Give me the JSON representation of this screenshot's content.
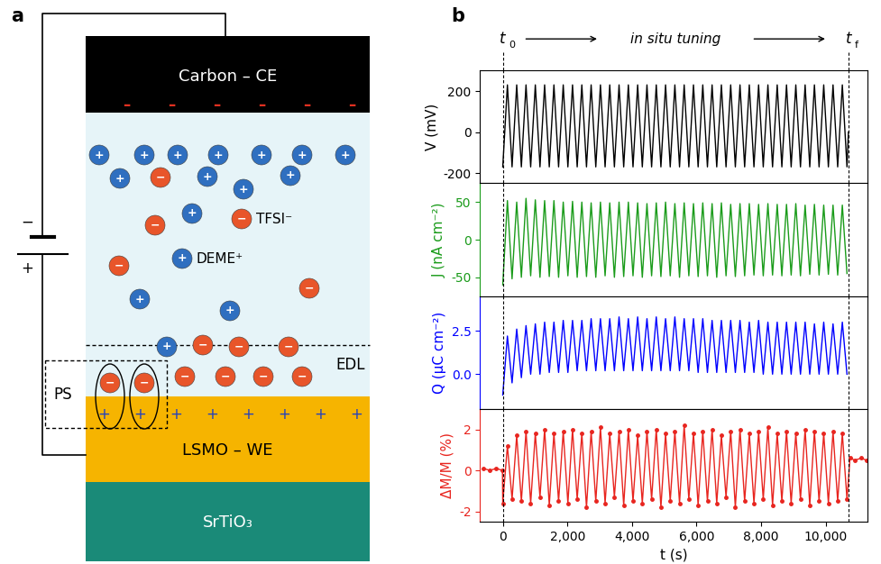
{
  "diagram": {
    "panel_label": "a",
    "counter_electrode": "Carbon – CE",
    "working_electrode": "LSMO – WE",
    "substrate": "SrTiO₃",
    "anion_label": "TFSI⁻",
    "cation_label": "DEME⁺",
    "edl_label": "EDL",
    "ps_label": "PS",
    "ion_signs": {
      "cation": "+",
      "anion": "−"
    },
    "electrode_charges": {
      "counter_electrode": "–",
      "working_electrode": "+"
    },
    "battery": {
      "negative": "−",
      "positive": "+"
    }
  },
  "chart_panel_label": "b",
  "in_situ_tuning": {
    "text": "in situ tuning",
    "start": {
      "text": "t",
      "subscript": "0",
      "x": 0
    },
    "end": {
      "text": "t",
      "subscript": "f",
      "x": 10700
    }
  },
  "chart_data": [
    {
      "type": "line",
      "ylabel": "V (mV)",
      "xlim": [
        -700,
        11300
      ],
      "xticks": [
        0,
        {
          "value": 2000,
          "label": "2,000"
        },
        {
          "value": 4000,
          "label": "4,000"
        },
        {
          "value": 6000,
          "label": "6,000"
        },
        {
          "value": 8000,
          "label": "8,000"
        },
        {
          "value": 10000,
          "label": "10,000"
        }
      ],
      "ylim": [
        -250,
        300
      ],
      "yticks": [
        -200,
        0,
        200
      ],
      "tick_labels": "y",
      "series": [
        {
          "color": "#000000",
          "line_style": "solid",
          "x": [
            0,
            144,
            288,
            432,
            576,
            720,
            864,
            1008,
            1152,
            1296,
            1440,
            1584,
            1728,
            1872,
            2016,
            2160,
            2304,
            2448,
            2592,
            2736,
            2880,
            3024,
            3168,
            3312,
            3456,
            3600,
            3744,
            3888,
            4032,
            4176,
            4320,
            4464,
            4608,
            4752,
            4896,
            5040,
            5184,
            5328,
            5472,
            5616,
            5760,
            5904,
            6048,
            6192,
            6336,
            6480,
            6624,
            6768,
            6912,
            7056,
            7200,
            7344,
            7488,
            7632,
            7776,
            7920,
            8064,
            8208,
            8352,
            8496,
            8640,
            8784,
            8928,
            9072,
            9216,
            9360,
            9504,
            9648,
            9792,
            9936,
            10080,
            10224,
            10368,
            10512,
            10656,
            10700
          ],
          "values": [
            -170,
            230,
            -170,
            230,
            -170,
            230,
            -170,
            230,
            -170,
            230,
            -170,
            230,
            -170,
            230,
            -170,
            230,
            -170,
            230,
            -170,
            230,
            -170,
            230,
            -170,
            230,
            -170,
            230,
            -170,
            230,
            -170,
            230,
            -170,
            230,
            -170,
            230,
            -170,
            230,
            -170,
            230,
            -170,
            230,
            -170,
            230,
            -170,
            230,
            -170,
            230,
            -170,
            230,
            -170,
            230,
            -170,
            230,
            -170,
            230,
            -170,
            230,
            -170,
            230,
            -170,
            230,
            -170,
            230,
            -170,
            230,
            -170,
            230,
            -170,
            230,
            -170,
            230,
            -170,
            230,
            -170,
            230,
            -170,
            0
          ]
        }
      ]
    },
    {
      "type": "line",
      "ylabel": "J (nA cm⁻²)",
      "xlim": [
        -700,
        11300
      ],
      "xticks": [
        0,
        {
          "value": 2000,
          "label": "2,000"
        },
        {
          "value": 4000,
          "label": "4,000"
        },
        {
          "value": 6000,
          "label": "6,000"
        },
        {
          "value": 8000,
          "label": "8,000"
        },
        {
          "value": 10000,
          "label": "10,000"
        }
      ],
      "ylim": [
        -75,
        75
      ],
      "yticks": [
        -50,
        0,
        50
      ],
      "tick_labels": "y",
      "series": [
        {
          "color": "#1a9b1a",
          "line_style": "solid",
          "x": [
            0,
            144,
            288,
            432,
            576,
            720,
            864,
            1008,
            1152,
            1296,
            1440,
            1584,
            1728,
            1872,
            2016,
            2160,
            2304,
            2448,
            2592,
            2736,
            2880,
            3024,
            3168,
            3312,
            3456,
            3600,
            3744,
            3888,
            4032,
            4176,
            4320,
            4464,
            4608,
            4752,
            4896,
            5040,
            5184,
            5328,
            5472,
            5616,
            5760,
            5904,
            6048,
            6192,
            6336,
            6480,
            6624,
            6768,
            6912,
            7056,
            7200,
            7344,
            7488,
            7632,
            7776,
            7920,
            8064,
            8208,
            8352,
            8496,
            8640,
            8784,
            8928,
            9072,
            9216,
            9360,
            9504,
            9648,
            9792,
            9936,
            10080,
            10224,
            10368,
            10512,
            10656
          ],
          "values": [
            -60,
            52,
            -52,
            50,
            -50,
            55,
            -48,
            53,
            -50,
            52,
            -49,
            52,
            -50,
            50,
            -48,
            51,
            -50,
            50,
            -49,
            49,
            -50,
            50,
            -48,
            49,
            -50,
            50,
            -49,
            50,
            -48,
            49,
            -50,
            48,
            -48,
            49,
            -49,
            50,
            -48,
            48,
            -50,
            49,
            -48,
            48,
            -49,
            49,
            -48,
            48,
            -50,
            49,
            -48,
            47,
            -49,
            48,
            -48,
            48,
            -47,
            47,
            -48,
            48,
            -47,
            47,
            -48,
            47,
            -47,
            48,
            -48,
            46,
            -46,
            47,
            -47,
            46,
            -46,
            46,
            -47,
            46,
            -45
          ]
        }
      ]
    },
    {
      "type": "line",
      "ylabel": "Q (μC cm⁻²)",
      "xlim": [
        -700,
        11300
      ],
      "xticks": [
        0,
        {
          "value": 2000,
          "label": "2,000"
        },
        {
          "value": 4000,
          "label": "4,000"
        },
        {
          "value": 6000,
          "label": "6,000"
        },
        {
          "value": 8000,
          "label": "8,000"
        },
        {
          "value": 10000,
          "label": "10,000"
        }
      ],
      "ylim": [
        -2,
        4.5
      ],
      "yticks": [
        {
          "value": 0,
          "label": "0.0"
        },
        2.5
      ],
      "tick_labels": "y",
      "series": [
        {
          "color": "#0000ff",
          "line_style": "solid",
          "x": [
            0,
            144,
            288,
            432,
            576,
            720,
            864,
            1008,
            1152,
            1296,
            1440,
            1584,
            1728,
            1872,
            2016,
            2160,
            2304,
            2448,
            2592,
            2736,
            2880,
            3024,
            3168,
            3312,
            3456,
            3600,
            3744,
            3888,
            4032,
            4176,
            4320,
            4464,
            4608,
            4752,
            4896,
            5040,
            5184,
            5328,
            5472,
            5616,
            5760,
            5904,
            6048,
            6192,
            6336,
            6480,
            6624,
            6768,
            6912,
            7056,
            7200,
            7344,
            7488,
            7632,
            7776,
            7920,
            8064,
            8208,
            8352,
            8496,
            8640,
            8784,
            8928,
            9072,
            9216,
            9360,
            9504,
            9648,
            9792,
            9936,
            10080,
            10224,
            10368,
            10512,
            10656
          ],
          "values": [
            -1.2,
            2.2,
            -0.5,
            2.6,
            -0.2,
            2.8,
            0.0,
            2.9,
            0.0,
            3.0,
            0.1,
            3.0,
            0.1,
            3.1,
            0.1,
            3.1,
            0.2,
            3.1,
            0.2,
            3.2,
            0.2,
            3.2,
            0.2,
            3.2,
            0.2,
            3.3,
            0.2,
            3.2,
            0.2,
            3.3,
            0.2,
            3.2,
            0.2,
            3.3,
            0.2,
            3.2,
            0.2,
            3.3,
            0.2,
            3.2,
            0.2,
            3.2,
            0.1,
            3.2,
            0.1,
            3.1,
            0.1,
            3.1,
            0.1,
            3.1,
            0.1,
            3.1,
            0.1,
            3.0,
            0.1,
            3.1,
            0.0,
            3.0,
            0.0,
            3.0,
            0.0,
            3.0,
            0.0,
            3.0,
            0.0,
            3.0,
            0.0,
            2.9,
            0.0,
            3.0,
            0.0,
            2.9,
            0.0,
            3.0,
            0.0
          ]
        }
      ]
    },
    {
      "type": "line",
      "ylabel": "ΔM/M (%)",
      "xlabel": "t (s)",
      "xlim": [
        -700,
        11300
      ],
      "xticks": [
        0,
        {
          "value": 2000,
          "label": "2,000"
        },
        {
          "value": 4000,
          "label": "4,000"
        },
        {
          "value": 6000,
          "label": "6,000"
        },
        {
          "value": 8000,
          "label": "8,000"
        },
        {
          "value": 10000,
          "label": "10,000"
        }
      ],
      "ylim": [
        -2.5,
        3
      ],
      "yticks": [
        -2,
        0,
        2
      ],
      "tick_labels": true,
      "series": [
        {
          "color": "#e8251f",
          "line_style": "solid",
          "marker": "o",
          "x": [
            -600,
            -400,
            -200,
            -10,
            0,
            144,
            288,
            432,
            576,
            720,
            864,
            1008,
            1152,
            1296,
            1440,
            1584,
            1728,
            1872,
            2016,
            2160,
            2304,
            2448,
            2592,
            2736,
            2880,
            3024,
            3168,
            3312,
            3456,
            3600,
            3744,
            3888,
            4032,
            4176,
            4320,
            4464,
            4608,
            4752,
            4896,
            5040,
            5184,
            5328,
            5472,
            5616,
            5760,
            5904,
            6048,
            6192,
            6336,
            6480,
            6624,
            6768,
            6912,
            7056,
            7200,
            7344,
            7488,
            7632,
            7776,
            7920,
            8064,
            8208,
            8352,
            8496,
            8640,
            8784,
            8928,
            9072,
            9216,
            9360,
            9504,
            9648,
            9792,
            9936,
            10080,
            10224,
            10368,
            10512,
            10656,
            10750,
            10900,
            11100,
            11250
          ],
          "values": [
            0.1,
            0.0,
            0.1,
            0.0,
            -1.6,
            1.2,
            -1.4,
            1.7,
            -1.5,
            1.9,
            -1.6,
            1.8,
            -1.3,
            2.0,
            -1.7,
            1.8,
            -1.5,
            1.9,
            -1.6,
            2.0,
            -1.4,
            1.8,
            -1.8,
            1.9,
            -1.5,
            2.1,
            -1.6,
            1.8,
            -1.3,
            1.9,
            -1.7,
            2.0,
            -1.5,
            1.7,
            -1.6,
            1.9,
            -1.4,
            2.0,
            -1.8,
            1.8,
            -1.5,
            1.9,
            -1.6,
            2.2,
            -1.4,
            1.8,
            -1.7,
            1.9,
            -1.5,
            2.0,
            -1.6,
            1.7,
            -1.3,
            1.9,
            -1.8,
            2.0,
            -1.5,
            1.8,
            -1.6,
            1.9,
            -1.4,
            2.1,
            -1.7,
            1.8,
            -1.5,
            1.9,
            -1.6,
            1.8,
            -1.4,
            2.0,
            -1.7,
            1.9,
            -1.5,
            1.8,
            -1.6,
            1.9,
            -1.5,
            1.8,
            -1.4,
            0.6,
            0.5,
            0.6,
            0.5
          ]
        }
      ]
    }
  ]
}
